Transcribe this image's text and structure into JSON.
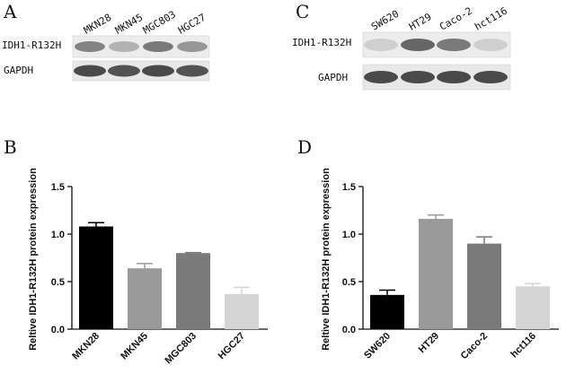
{
  "panels": {
    "a": {
      "letter": "A"
    },
    "b": {
      "letter": "B"
    },
    "c": {
      "letter": "C"
    },
    "d": {
      "letter": "D"
    }
  },
  "blots": [
    {
      "lanes": [
        "MKN28",
        "MKN45",
        "MGC803",
        "HGC27"
      ],
      "rows": [
        {
          "label": "IDH1-R132H",
          "intensity": [
            0.55,
            0.3,
            0.6,
            0.45
          ]
        },
        {
          "label": "GAPDH",
          "intensity": [
            0.85,
            0.8,
            0.85,
            0.8
          ]
        }
      ]
    },
    {
      "lanes": [
        "SW620",
        "HT29",
        "Caco-2",
        "hct116"
      ],
      "rows": [
        {
          "label": "IDH1-R132H",
          "intensity": [
            0.15,
            0.7,
            0.6,
            0.15
          ]
        },
        {
          "label": "GAPDH",
          "intensity": [
            0.85,
            0.85,
            0.85,
            0.85
          ]
        }
      ]
    }
  ],
  "chart_data": [
    {
      "type": "bar",
      "categories": [
        "MKN28",
        "MKN45",
        "MGC803",
        "HGC27"
      ],
      "values": [
        1.08,
        0.64,
        0.8,
        0.37
      ],
      "errors": [
        0.04,
        0.05,
        0.005,
        0.07
      ],
      "colors": [
        "#000000",
        "#9a9a9a",
        "#7a7a7a",
        "#d4d4d4"
      ],
      "title": "",
      "xlabel": "",
      "ylabel": "Reltive IDH1-R132H protein expression",
      "ylim": [
        0,
        1.5
      ],
      "yticks": [
        "0.0",
        "0.5",
        "1.0",
        "1.5"
      ],
      "grid": false
    },
    {
      "type": "bar",
      "categories": [
        "SW620",
        "HT29",
        "Caco-2",
        "hct116"
      ],
      "values": [
        0.36,
        1.16,
        0.9,
        0.45
      ],
      "errors": [
        0.05,
        0.04,
        0.07,
        0.03
      ],
      "colors": [
        "#000000",
        "#9a9a9a",
        "#7a7a7a",
        "#d4d4d4"
      ],
      "title": "",
      "xlabel": "",
      "ylabel": "Reltive IDH1-R132H protein expression",
      "ylim": [
        0,
        1.5
      ],
      "yticks": [
        "0.0",
        "0.5",
        "1.0",
        "1.5"
      ],
      "grid": false
    }
  ]
}
